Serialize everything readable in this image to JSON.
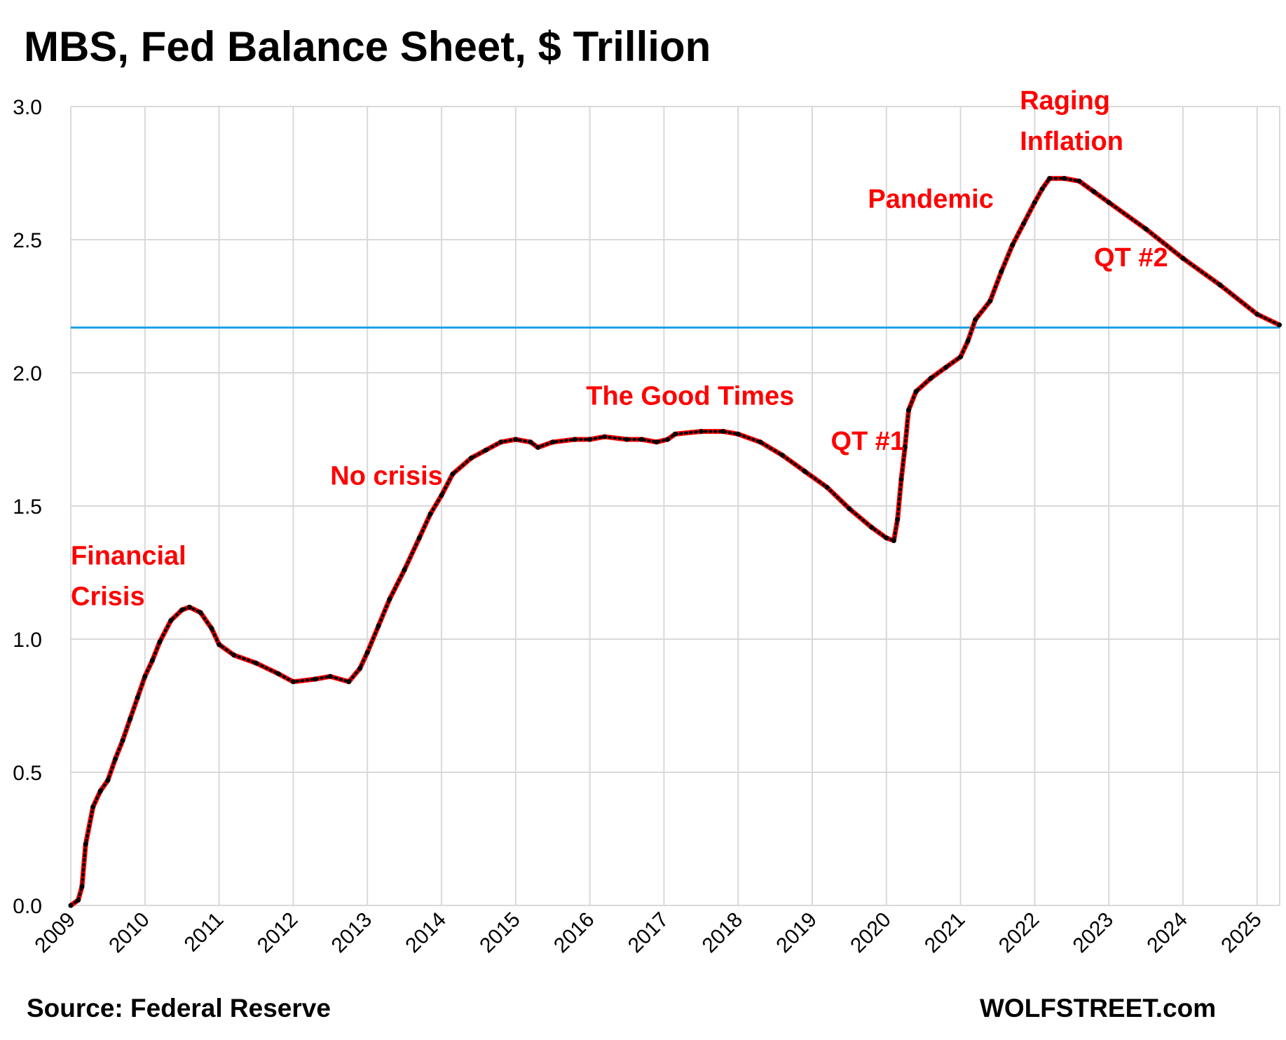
{
  "header": {
    "title": "MBS, Fed Balance Sheet, $ Trillion"
  },
  "footer": {
    "source": "Source: Federal Reserve",
    "brand": "WOLFSTREET.com"
  },
  "chart_data": {
    "type": "line",
    "title": "MBS, Fed Balance Sheet, $ Trillion",
    "xlabel": "",
    "ylabel": "",
    "xlim": [
      2009.0,
      2025.3
    ],
    "ylim": [
      0,
      3.0
    ],
    "y_ticks": [
      "0.0",
      "0.5",
      "1.0",
      "1.5",
      "2.0",
      "2.5",
      "3.0"
    ],
    "x_ticks": [
      "2009",
      "2010",
      "2011",
      "2012",
      "2013",
      "2014",
      "2015",
      "2016",
      "2017",
      "2018",
      "2019",
      "2020",
      "2021",
      "2022",
      "2023",
      "2024",
      "2025"
    ],
    "grid": true,
    "legend": "none",
    "reference_line": {
      "y": 2.17,
      "color": "#1ba1e2"
    },
    "series": [
      {
        "color": "#ff0000",
        "marker_color": "#000000",
        "points": [
          [
            2009.0,
            0.0
          ],
          [
            2009.1,
            0.02
          ],
          [
            2009.15,
            0.07
          ],
          [
            2009.2,
            0.23
          ],
          [
            2009.3,
            0.37
          ],
          [
            2009.4,
            0.43
          ],
          [
            2009.5,
            0.47
          ],
          [
            2009.6,
            0.55
          ],
          [
            2009.7,
            0.62
          ],
          [
            2009.8,
            0.7
          ],
          [
            2009.9,
            0.78
          ],
          [
            2010.0,
            0.86
          ],
          [
            2010.1,
            0.92
          ],
          [
            2010.2,
            0.99
          ],
          [
            2010.35,
            1.07
          ],
          [
            2010.5,
            1.11
          ],
          [
            2010.6,
            1.12
          ],
          [
            2010.75,
            1.1
          ],
          [
            2010.9,
            1.04
          ],
          [
            2011.0,
            0.98
          ],
          [
            2011.2,
            0.94
          ],
          [
            2011.5,
            0.91
          ],
          [
            2011.8,
            0.87
          ],
          [
            2012.0,
            0.84
          ],
          [
            2012.3,
            0.85
          ],
          [
            2012.5,
            0.86
          ],
          [
            2012.75,
            0.84
          ],
          [
            2012.9,
            0.89
          ],
          [
            2013.0,
            0.95
          ],
          [
            2013.15,
            1.05
          ],
          [
            2013.3,
            1.15
          ],
          [
            2013.5,
            1.26
          ],
          [
            2013.7,
            1.38
          ],
          [
            2013.85,
            1.47
          ],
          [
            2014.0,
            1.54
          ],
          [
            2014.15,
            1.62
          ],
          [
            2014.4,
            1.68
          ],
          [
            2014.6,
            1.71
          ],
          [
            2014.8,
            1.74
          ],
          [
            2015.0,
            1.75
          ],
          [
            2015.2,
            1.74
          ],
          [
            2015.3,
            1.72
          ],
          [
            2015.5,
            1.74
          ],
          [
            2015.8,
            1.75
          ],
          [
            2016.0,
            1.75
          ],
          [
            2016.2,
            1.76
          ],
          [
            2016.5,
            1.75
          ],
          [
            2016.7,
            1.75
          ],
          [
            2016.9,
            1.74
          ],
          [
            2017.05,
            1.75
          ],
          [
            2017.15,
            1.77
          ],
          [
            2017.5,
            1.78
          ],
          [
            2017.8,
            1.78
          ],
          [
            2018.0,
            1.77
          ],
          [
            2018.3,
            1.74
          ],
          [
            2018.6,
            1.69
          ],
          [
            2018.9,
            1.63
          ],
          [
            2019.2,
            1.57
          ],
          [
            2019.5,
            1.49
          ],
          [
            2019.8,
            1.42
          ],
          [
            2020.0,
            1.38
          ],
          [
            2020.1,
            1.37
          ],
          [
            2020.15,
            1.45
          ],
          [
            2020.2,
            1.6
          ],
          [
            2020.25,
            1.72
          ],
          [
            2020.3,
            1.86
          ],
          [
            2020.4,
            1.93
          ],
          [
            2020.6,
            1.98
          ],
          [
            2020.8,
            2.02
          ],
          [
            2021.0,
            2.06
          ],
          [
            2021.1,
            2.12
          ],
          [
            2021.2,
            2.2
          ],
          [
            2021.4,
            2.27
          ],
          [
            2021.55,
            2.38
          ],
          [
            2021.7,
            2.48
          ],
          [
            2021.85,
            2.56
          ],
          [
            2022.0,
            2.64
          ],
          [
            2022.1,
            2.69
          ],
          [
            2022.2,
            2.73
          ],
          [
            2022.4,
            2.73
          ],
          [
            2022.6,
            2.72
          ],
          [
            2022.8,
            2.68
          ],
          [
            2023.0,
            2.64
          ],
          [
            2023.5,
            2.54
          ],
          [
            2024.0,
            2.43
          ],
          [
            2024.5,
            2.33
          ],
          [
            2025.0,
            2.22
          ],
          [
            2025.3,
            2.18
          ]
        ]
      }
    ],
    "annotations": [
      {
        "lines": [
          "Financial",
          "Crisis"
        ],
        "color": "#ff0000",
        "x": 2009.0,
        "y": 1.28
      },
      {
        "lines": [
          "No crisis"
        ],
        "color": "#ff0000",
        "x": 2012.5,
        "y": 1.58
      },
      {
        "lines": [
          "The Good Times"
        ],
        "color": "#ff0000",
        "x": 2015.95,
        "y": 1.88
      },
      {
        "lines": [
          "QT #1"
        ],
        "color": "#ff0000",
        "x": 2019.25,
        "y": 1.71
      },
      {
        "lines": [
          "Pandemic"
        ],
        "color": "#ff0000",
        "x": 2019.75,
        "y": 2.62
      },
      {
        "lines": [
          "Raging",
          "Inflation"
        ],
        "color": "#ff0000",
        "x": 2021.8,
        "y": 2.99
      },
      {
        "lines": [
          "QT #2"
        ],
        "color": "#ff0000",
        "x": 2022.8,
        "y": 2.4
      }
    ]
  }
}
